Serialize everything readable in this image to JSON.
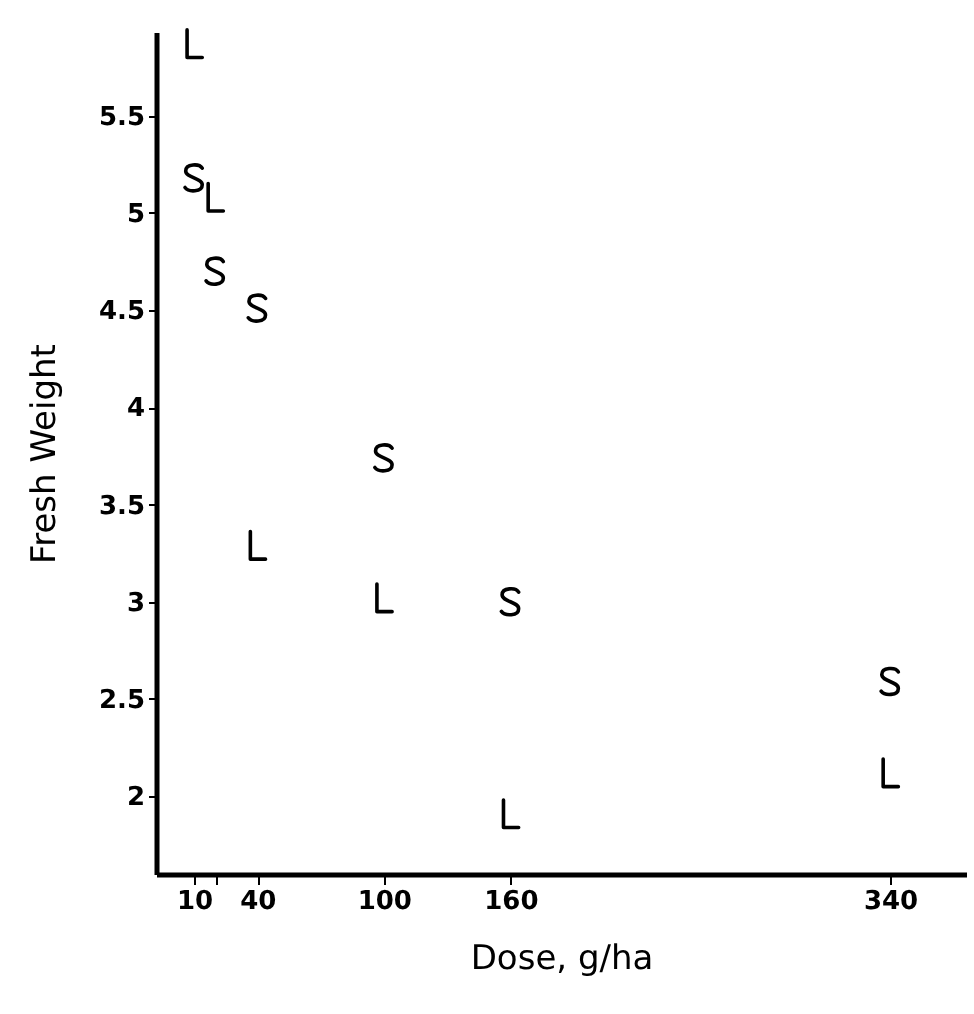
{
  "chart_data": {
    "type": "scatter",
    "xlabel": "Dose, g/ha",
    "ylabel": "Fresh Weight",
    "xlim": [
      -8,
      376
    ],
    "ylim": [
      1.6,
      5.93
    ],
    "xticks": [
      10,
      {
        "value": 20,
        "label": null
      },
      40,
      100,
      160,
      340
    ],
    "yticks": [
      2,
      2.5,
      3,
      3.5,
      4,
      4.5,
      5,
      5.5
    ],
    "grid": false,
    "series": [
      {
        "color": "#000000",
        "x": [
          10,
          20,
          40,
          100,
          160,
          340
        ],
        "values": [
          5.18,
          4.7,
          4.51,
          3.74,
          3.0,
          2.59
        ]
      },
      {
        "color": "#000000",
        "x": [
          10,
          20,
          40,
          100,
          160,
          340
        ],
        "values": [
          5.87,
          5.08,
          3.29,
          3.02,
          1.91,
          2.12
        ]
      }
    ]
  }
}
